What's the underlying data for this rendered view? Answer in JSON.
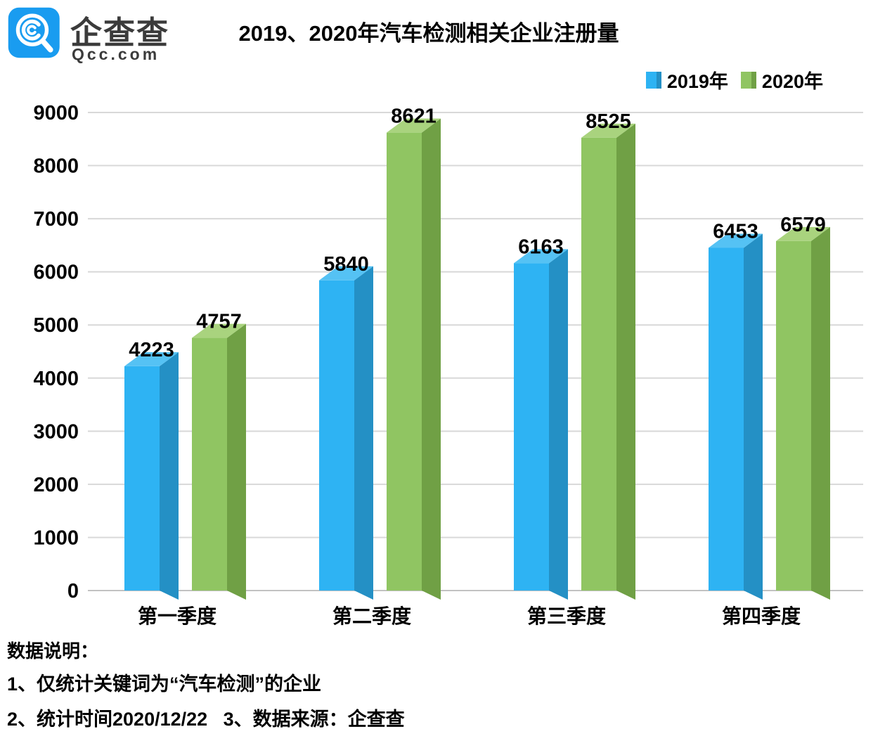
{
  "header": {
    "brand_cn": "企查查",
    "brand_domain": "Qcc.com",
    "brand_color": "#199cf0",
    "title": "2019、2020年汽车检测相关企业注册量"
  },
  "legend": [
    {
      "label": "2019年",
      "color": "#2eb3f3",
      "side_color": "#2490c5"
    },
    {
      "label": "2020年",
      "color": "#90c562",
      "side_color": "#70a045"
    }
  ],
  "chart_data": {
    "type": "bar",
    "variant": "3d-column-grouped",
    "title": "2019、2020年汽车检测相关企业注册量",
    "categories": [
      "第一季度",
      "第二季度",
      "第三季度",
      "第四季度"
    ],
    "series": [
      {
        "name": "2019年",
        "values": [
          4223,
          5840,
          6163,
          6453
        ],
        "front_color": "#2eb3f3",
        "side_color": "#2490c5",
        "top_color": "#55c2f4"
      },
      {
        "name": "2020年",
        "values": [
          4757,
          8621,
          8525,
          6579
        ],
        "front_color": "#90c562",
        "side_color": "#70a045",
        "top_color": "#a9d37e"
      }
    ],
    "xlabel": "",
    "ylabel": "",
    "ylim": [
      0,
      9000
    ],
    "ytick_step": 1000,
    "yticks": [
      0,
      1000,
      2000,
      3000,
      4000,
      5000,
      6000,
      7000,
      8000,
      9000
    ],
    "grid": true,
    "legend_position": "top-right",
    "gridline_color": "#d8d8d8",
    "axis_color": "#c2c2c2",
    "value_labels_shown": true
  },
  "footer": {
    "heading": "数据说明：",
    "notes": [
      "1、仅统计关键词为“汽车检测”的企业",
      "2、统计时间2020/12/22   3、数据来源：企查查"
    ]
  }
}
